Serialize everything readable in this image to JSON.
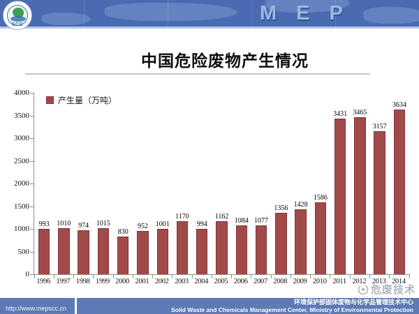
{
  "header": {
    "logo_text": "SCC",
    "mep_text": "MEP"
  },
  "title": "中国危险废物产生情况",
  "chart_data": {
    "type": "bar",
    "title": "中国危险废物产生情况",
    "legend": "产生量（万吨）",
    "categories": [
      "1996",
      "1997",
      "1998",
      "1999",
      "2000",
      "2001",
      "2002",
      "2003",
      "2004",
      "2005",
      "2006",
      "2007",
      "2008",
      "2009",
      "2010",
      "2011",
      "2012",
      "2013",
      "2014"
    ],
    "values": [
      993,
      1010,
      974,
      1015,
      830,
      952,
      1001,
      1170,
      994,
      1162,
      1084,
      1077,
      1356,
      1428,
      1586,
      3431,
      3465,
      3157,
      3634
    ],
    "ylim": [
      0,
      4000
    ],
    "y_tick_step": 500,
    "xlabel": "",
    "ylabel": "",
    "grid": "off",
    "legend_position": "top-left",
    "bar_color": "#a24a4a"
  },
  "watermark": {
    "text": "危废技术"
  },
  "footer": {
    "url": "http://www.mepscc.cn",
    "org_cn": "环境保护部固体废物与化学品管理技术中心",
    "org_en": "Solid Waste and Chemicals Management Center, Ministry of Environmental Protection"
  },
  "colors": {
    "header_blue": "#4a6ab2",
    "footer_blue": "#5d7ab6",
    "bar_red": "#a24a4a"
  }
}
